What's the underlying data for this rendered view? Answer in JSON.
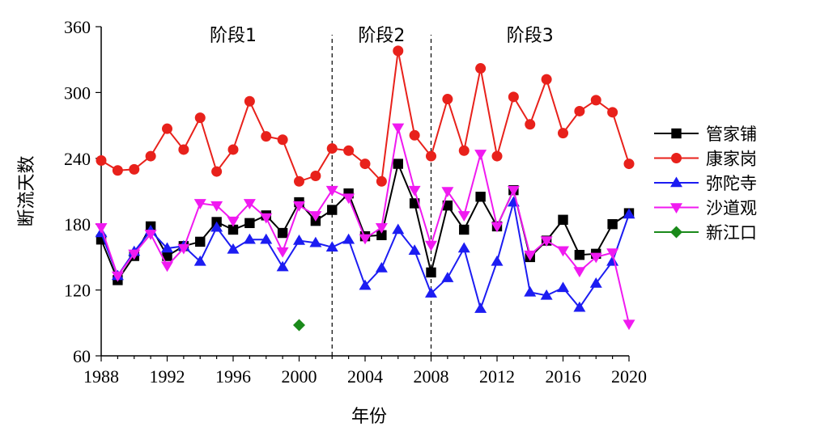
{
  "chart_data": {
    "type": "line",
    "xlabel": "年份",
    "ylabel": "断流天数",
    "xlim": [
      1988,
      2020
    ],
    "ylim": [
      60,
      360
    ],
    "xticks": [
      1988,
      1992,
      1996,
      2000,
      2004,
      2008,
      2012,
      2016,
      2020
    ],
    "yticks": [
      60,
      120,
      180,
      240,
      300,
      360
    ],
    "xtick_labels": [
      "1988",
      "1992",
      "1996",
      "2000",
      "2004",
      "2008",
      "2012",
      "2016",
      "2020"
    ],
    "ytick_labels": [
      "60",
      "120",
      "180",
      "240",
      "300",
      "360"
    ],
    "stage_dividers": [
      2002,
      2008
    ],
    "stages": [
      {
        "label": "阶段1",
        "x": 1996
      },
      {
        "label": "阶段2",
        "x": 2005
      },
      {
        "label": "阶段3",
        "x": 2014
      }
    ],
    "legend_position": "right",
    "series": [
      {
        "name": "管家铺",
        "color": "#000000",
        "marker": "square",
        "x": [
          1988,
          1989,
          1990,
          1991,
          1992,
          1993,
          1994,
          1995,
          1996,
          1997,
          1998,
          1999,
          2000,
          2001,
          2002,
          2003,
          2004,
          2005,
          2006,
          2007,
          2008,
          2009,
          2010,
          2011,
          2012,
          2013,
          2014,
          2015,
          2016,
          2017,
          2018,
          2019,
          2020
        ],
        "values": [
          166,
          129,
          151,
          178,
          151,
          160,
          164,
          182,
          175,
          181,
          188,
          172,
          200,
          183,
          193,
          208,
          169,
          170,
          235,
          199,
          136,
          197,
          175,
          205,
          178,
          211,
          150,
          165,
          184,
          152,
          153,
          180,
          190
        ]
      },
      {
        "name": "康家岗",
        "color": "#e8211b",
        "marker": "circle",
        "x": [
          1988,
          1989,
          1990,
          1991,
          1992,
          1993,
          1994,
          1995,
          1996,
          1997,
          1998,
          1999,
          2000,
          2001,
          2002,
          2003,
          2004,
          2005,
          2006,
          2007,
          2008,
          2009,
          2010,
          2011,
          2012,
          2013,
          2014,
          2015,
          2016,
          2017,
          2018,
          2019,
          2020
        ],
        "values": [
          238,
          229,
          230,
          242,
          267,
          248,
          277,
          228,
          248,
          292,
          260,
          257,
          219,
          224,
          249,
          247,
          235,
          219,
          338,
          261,
          242,
          294,
          247,
          322,
          242,
          296,
          271,
          312,
          263,
          283,
          293,
          282,
          235
        ]
      },
      {
        "name": "弥陀寺",
        "color": "#1c1cf2",
        "marker": "triangle-up",
        "x": [
          1988,
          1989,
          1990,
          1991,
          1992,
          1993,
          1994,
          1995,
          1996,
          1997,
          1998,
          1999,
          2000,
          2001,
          2002,
          2003,
          2004,
          2005,
          2006,
          2007,
          2008,
          2009,
          2010,
          2011,
          2012,
          2013,
          2014,
          2015,
          2016,
          2017,
          2018,
          2019,
          2020
        ],
        "values": [
          172,
          133,
          155,
          174,
          158,
          160,
          146,
          177,
          157,
          166,
          166,
          141,
          165,
          163,
          159,
          166,
          124,
          140,
          175,
          156,
          117,
          131,
          158,
          103,
          146,
          200,
          118,
          115,
          122,
          104,
          126,
          146,
          189
        ]
      },
      {
        "name": "沙道观",
        "color": "#f01af0",
        "marker": "triangle-down",
        "x": [
          1988,
          1989,
          1990,
          1991,
          1992,
          1993,
          1994,
          1995,
          1996,
          1997,
          1998,
          1999,
          2000,
          2001,
          2002,
          2003,
          2004,
          2005,
          2006,
          2007,
          2008,
          2009,
          2010,
          2011,
          2012,
          2013,
          2014,
          2015,
          2016,
          2017,
          2018,
          2019,
          2020
        ],
        "values": [
          177,
          133,
          153,
          171,
          142,
          158,
          199,
          197,
          183,
          199,
          186,
          155,
          197,
          188,
          211,
          204,
          167,
          177,
          268,
          211,
          161,
          210,
          188,
          244,
          178,
          211,
          152,
          165,
          156,
          137,
          150,
          154,
          89
        ]
      },
      {
        "name": "新江口",
        "color": "#1a8a1a",
        "marker": "diamond",
        "x": [
          2000
        ],
        "values": [
          88
        ]
      }
    ]
  }
}
